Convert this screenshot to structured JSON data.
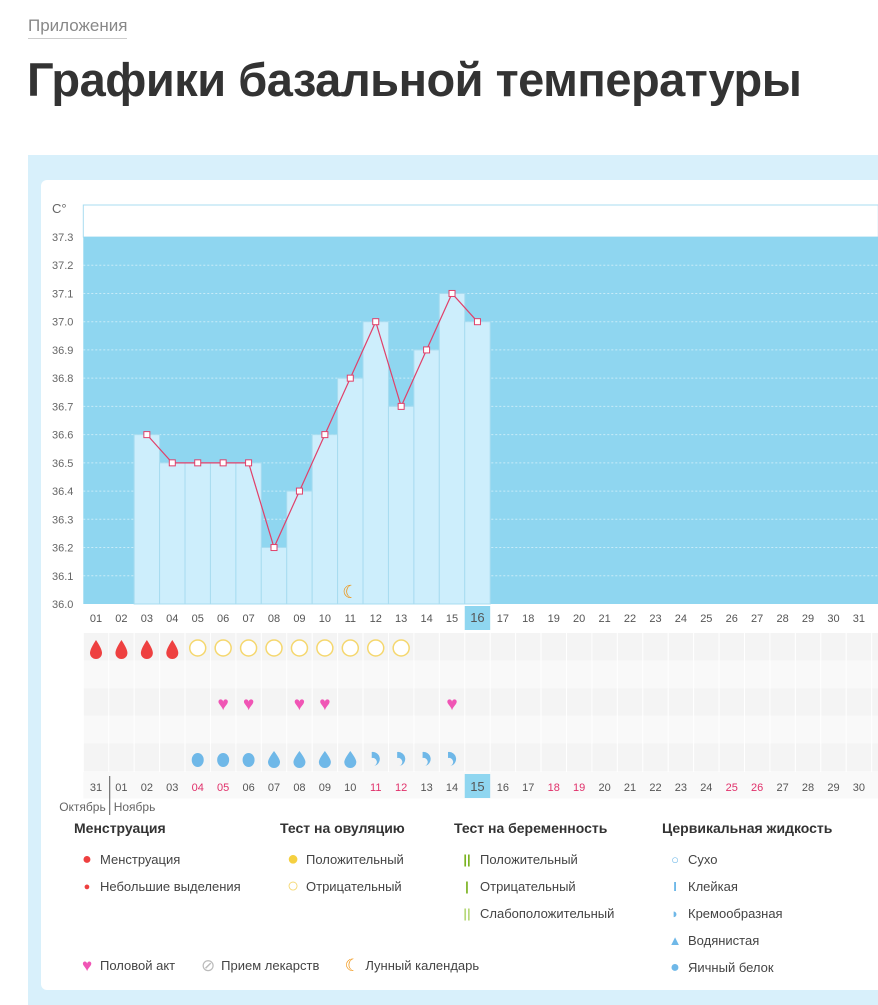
{
  "breadcrumb": "Приложения",
  "title": "Графики базальной температуры",
  "chart_data": {
    "type": "bar",
    "ylabel": "C°",
    "ylim": [
      36.0,
      37.3
    ],
    "yticks": [
      "36.0",
      "36.1",
      "36.2",
      "36.3",
      "36.4",
      "36.5",
      "36.6",
      "36.7",
      "36.8",
      "36.9",
      "37.0",
      "37.1",
      "37.2",
      "37.3"
    ],
    "cycle_days": [
      "01",
      "02",
      "03",
      "04",
      "05",
      "06",
      "07",
      "08",
      "09",
      "10",
      "11",
      "12",
      "13",
      "14",
      "15",
      "16",
      "17",
      "18",
      "19",
      "20",
      "21",
      "22",
      "23",
      "24",
      "25",
      "26",
      "27",
      "28",
      "29",
      "30",
      "31"
    ],
    "current_cycle_day": "16",
    "temperatures": [
      null,
      null,
      36.6,
      36.5,
      36.5,
      36.5,
      36.5,
      36.2,
      36.4,
      36.6,
      36.8,
      37.0,
      36.7,
      36.9,
      37.1,
      37.0
    ],
    "moon_day": "11",
    "menstruation": [
      "01",
      "02",
      "03",
      "04"
    ],
    "ovulation_test_negative": [
      "05",
      "06",
      "07",
      "08",
      "09",
      "10",
      "11",
      "12",
      "13"
    ],
    "intercourse": [
      "06",
      "07",
      "09",
      "10",
      "15"
    ],
    "cervical_fluid": {
      "05": "egg-white",
      "06": "egg-white",
      "07": "egg-white",
      "08": "watery",
      "09": "watery",
      "10": "watery",
      "11": "watery",
      "12": "creamy",
      "13": "creamy",
      "14": "creamy",
      "15": "creamy"
    },
    "calendar_dates": [
      "31",
      "01",
      "02",
      "03",
      "04",
      "05",
      "06",
      "07",
      "08",
      "09",
      "10",
      "11",
      "12",
      "13",
      "14",
      "15",
      "16",
      "17",
      "18",
      "19",
      "20",
      "21",
      "22",
      "23",
      "24",
      "25",
      "26",
      "27",
      "28",
      "29",
      "30"
    ],
    "weekend_dates": [
      "04",
      "05",
      "11",
      "12",
      "18",
      "19",
      "25",
      "26"
    ],
    "today_date": "15",
    "months": [
      "Октябрь",
      "Ноябрь"
    ],
    "colors": {
      "plot_bg": "#8fd6f0",
      "bar": "#cdeefc",
      "line": "#e0406a",
      "menstruation": "#ee4040",
      "ovulation": "#f5d76e",
      "heart": "#f055b5",
      "fluid": "#6fb8e8",
      "moon": "#f0900a",
      "weekend": "#e0306a"
    }
  },
  "legend": {
    "menstruation": {
      "title": "Менструация",
      "items": [
        "Менструация",
        "Небольшие выделения"
      ]
    },
    "ovulation": {
      "title": "Тест на овуляцию",
      "items": [
        "Положительный",
        "Отрицательный"
      ]
    },
    "pregnancy": {
      "title": "Тест на беременность",
      "items": [
        "Положительный",
        "Отрицательный",
        "Слабоположительный"
      ]
    },
    "fluid": {
      "title": "Цервикальная жидкость",
      "items": [
        "Сухо",
        "Клейкая",
        "Кремообразная",
        "Водянистая",
        "Яичный белок"
      ]
    },
    "other": [
      "Половой акт",
      "Прием лекарств",
      "Лунный календарь"
    ]
  }
}
